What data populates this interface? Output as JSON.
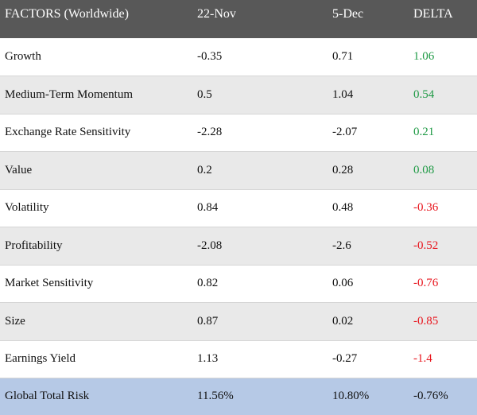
{
  "header": {
    "col1": "FACTORS (Worldwide)",
    "col2": "22-Nov",
    "col3": "5-Dec",
    "col4": "DELTA"
  },
  "rows": [
    {
      "factor": "Growth",
      "nov": "-0.35",
      "dec": "0.71",
      "delta": "1.06"
    },
    {
      "factor": "Medium-Term Momentum",
      "nov": "0.5",
      "dec": "1.04",
      "delta": "0.54"
    },
    {
      "factor": "Exchange Rate Sensitivity",
      "nov": "-2.28",
      "dec": "-2.07",
      "delta": "0.21"
    },
    {
      "factor": "Value",
      "nov": "0.2",
      "dec": "0.28",
      "delta": "0.08"
    },
    {
      "factor": "Volatility",
      "nov": "0.84",
      "dec": "0.48",
      "delta": "-0.36"
    },
    {
      "factor": "Profitability",
      "nov": "-2.08",
      "dec": "-2.6",
      "delta": "-0.52"
    },
    {
      "factor": "Market Sensitivity",
      "nov": "0.82",
      "dec": "0.06",
      "delta": "-0.76"
    },
    {
      "factor": "Size",
      "nov": "0.87",
      "dec": "0.02",
      "delta": "-0.85"
    },
    {
      "factor": "Earnings Yield",
      "nov": "1.13",
      "dec": "-0.27",
      "delta": "-1.4"
    }
  ],
  "total": {
    "factor": "Global Total Risk",
    "nov": "11.56%",
    "dec": "10.80%",
    "delta": "-0.76%"
  },
  "colors": {
    "header_bg": "#585858",
    "alt_row_bg": "#e9e9e9",
    "total_row_bg": "#b6c9e6",
    "positive": "#1f9a45",
    "negative": "#e8141c"
  }
}
